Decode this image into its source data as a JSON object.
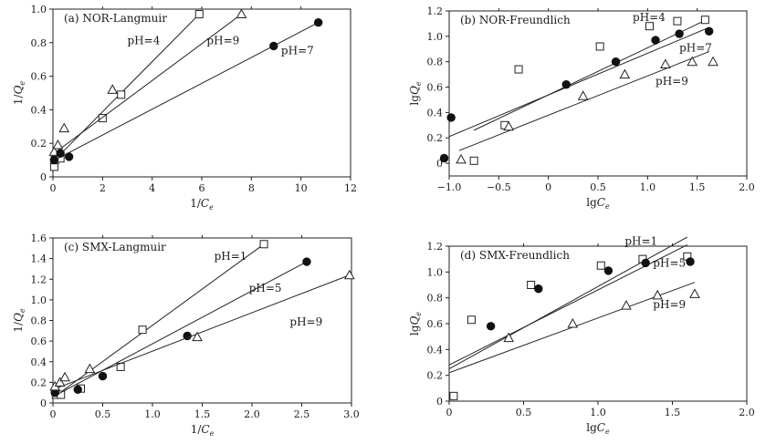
{
  "chart_data": [
    {
      "type": "scatter",
      "title": "(a) NOR-Langmuir",
      "xlabel": "1/Ce",
      "ylabel": "1/Qe",
      "xlim": [
        0,
        12
      ],
      "ylim": [
        0,
        1.0
      ],
      "xticks": [
        "0",
        "2",
        "4",
        "6",
        "8",
        "10",
        "12"
      ],
      "yticks": [
        "0",
        "0.2",
        "0.4",
        "0.6",
        "0.8",
        "1.0"
      ],
      "series": [
        {
          "name": "pH=4",
          "marker": "square",
          "x": [
            0.05,
            0.08,
            0.3,
            2.0,
            2.75,
            5.9
          ],
          "y": [
            0.06,
            0.1,
            0.11,
            0.35,
            0.49,
            0.97
          ],
          "fit": [
            [
              0,
              0.09
            ],
            [
              5.9,
              0.97
            ]
          ]
        },
        {
          "name": "pH=9",
          "marker": "triangle",
          "x": [
            0.05,
            0.2,
            0.45,
            2.4,
            7.6
          ],
          "y": [
            0.15,
            0.19,
            0.29,
            0.52,
            0.97
          ],
          "fit": [
            [
              0,
              0.135
            ],
            [
              7.6,
              0.97
            ]
          ]
        },
        {
          "name": "pH=7",
          "marker": "circle",
          "x": [
            0.05,
            0.3,
            0.65,
            8.9,
            10.7
          ],
          "y": [
            0.1,
            0.14,
            0.12,
            0.78,
            0.92
          ],
          "fit": [
            [
              0,
              0.095
            ],
            [
              10.7,
              0.92
            ]
          ]
        }
      ],
      "labels": [
        {
          "text": "pH=4",
          "x": 3.0,
          "y": 0.79
        },
        {
          "text": "pH=9",
          "x": 6.2,
          "y": 0.79
        },
        {
          "text": "pH=7",
          "x": 9.2,
          "y": 0.73
        }
      ]
    },
    {
      "type": "scatter",
      "title": "(b) NOR-Freundlich",
      "xlabel": "lgCe",
      "ylabel": "lgQe",
      "xlim": [
        -1.0,
        2.0
      ],
      "ylim": [
        -0.1,
        1.2
      ],
      "xticks": [
        "−1.0",
        "−0.5",
        "0",
        "0.5",
        "1.0",
        "1.5",
        "2.0"
      ],
      "yticks": [
        "0",
        "0.2",
        "0.4",
        "0.6",
        "0.8",
        "1.0",
        "1.2"
      ],
      "series": [
        {
          "name": "pH=4",
          "marker": "square",
          "x": [
            -0.75,
            -0.44,
            -0.3,
            0.52,
            1.02,
            1.3,
            1.58
          ],
          "y": [
            0.02,
            0.3,
            0.74,
            0.92,
            1.08,
            1.12,
            1.13
          ],
          "fit": [
            [
              -0.75,
              0.26
            ],
            [
              1.62,
              1.14
            ]
          ]
        },
        {
          "name": "pH=7",
          "marker": "circle",
          "x": [
            -1.05,
            -0.98,
            0.18,
            0.68,
            1.08,
            1.32,
            1.62
          ],
          "y": [
            0.04,
            0.36,
            0.62,
            0.8,
            0.97,
            1.02,
            1.04
          ],
          "fit": [
            [
              -1.0,
              0.21
            ],
            [
              1.62,
              1.07
            ]
          ]
        },
        {
          "name": "pH=9",
          "marker": "triangle",
          "x": [
            -0.88,
            -0.4,
            0.35,
            0.77,
            1.18,
            1.45,
            1.66
          ],
          "y": [
            0.03,
            0.29,
            0.53,
            0.7,
            0.78,
            0.8,
            0.8
          ],
          "fit": [
            [
              -0.9,
              0.1
            ],
            [
              1.62,
              0.88
            ]
          ]
        }
      ],
      "labels": [
        {
          "text": "pH=4",
          "x": 0.85,
          "y": 1.12
        },
        {
          "text": "pH=7",
          "x": 1.32,
          "y": 0.88
        },
        {
          "text": "pH=9",
          "x": 1.08,
          "y": 0.62
        }
      ]
    },
    {
      "type": "scatter",
      "title": "(c) SMX-Langmuir",
      "xlabel": "1/Ce",
      "ylabel": "1/Qe",
      "xlim": [
        0,
        3.0
      ],
      "ylim": [
        0,
        1.6
      ],
      "xticks": [
        "0",
        "0.5",
        "1.0",
        "1.5",
        "2.0",
        "2.5",
        "3.0"
      ],
      "yticks": [
        "0",
        "0.2",
        "0.4",
        "0.6",
        "0.8",
        "1.0",
        "1.2",
        "1.4",
        "1.6"
      ],
      "series": [
        {
          "name": "pH=1",
          "marker": "square",
          "x": [
            0.03,
            0.08,
            0.28,
            0.68,
            0.9,
            2.12
          ],
          "y": [
            0.08,
            0.08,
            0.14,
            0.35,
            0.71,
            1.54
          ],
          "fit": [
            [
              0,
              0.05
            ],
            [
              2.12,
              1.54
            ]
          ]
        },
        {
          "name": "pH=5",
          "marker": "circle",
          "x": [
            0.02,
            0.25,
            0.5,
            1.35,
            2.55
          ],
          "y": [
            0.1,
            0.13,
            0.26,
            0.65,
            1.37
          ],
          "fit": [
            [
              0,
              0.06
            ],
            [
              2.55,
              1.37
            ]
          ]
        },
        {
          "name": "pH=9",
          "marker": "triangle",
          "x": [
            0.02,
            0.07,
            0.12,
            0.37,
            1.45,
            2.98
          ],
          "y": [
            0.16,
            0.2,
            0.25,
            0.33,
            0.64,
            1.24
          ],
          "fit": [
            [
              0,
              0.13
            ],
            [
              2.98,
              1.24
            ]
          ]
        }
      ],
      "labels": [
        {
          "text": "pH=1",
          "x": 1.62,
          "y": 1.39
        },
        {
          "text": "pH=5",
          "x": 1.97,
          "y": 1.08
        },
        {
          "text": "pH=9",
          "x": 2.38,
          "y": 0.75
        }
      ]
    },
    {
      "type": "scatter",
      "title": "(d) SMX-Freundlich",
      "xlabel": "lgCe",
      "ylabel": "lgQe",
      "xlim": [
        0,
        2.0
      ],
      "ylim": [
        0,
        1.2
      ],
      "xticks": [
        "0",
        "0.5",
        "1.0",
        "1.5",
        "2.0"
      ],
      "yticks": [
        "0",
        "0.2",
        "0.4",
        "0.6",
        "0.8",
        "1.0",
        "1.2"
      ],
      "series": [
        {
          "name": "pH=1",
          "marker": "square",
          "x": [
            0.03,
            0.15,
            0.55,
            1.02,
            1.3,
            1.6
          ],
          "y": [
            0.04,
            0.63,
            0.9,
            1.05,
            1.1,
            1.12
          ],
          "fit": [
            [
              0,
              0.25
            ],
            [
              1.6,
              1.27
            ]
          ]
        },
        {
          "name": "pH=5",
          "marker": "circle",
          "x": [
            0.28,
            0.6,
            1.07,
            1.32,
            1.62
          ],
          "y": [
            0.58,
            0.87,
            1.01,
            1.07,
            1.08
          ],
          "fit": [
            [
              0,
              0.28
            ],
            [
              1.6,
              1.21
            ]
          ]
        },
        {
          "name": "pH=9",
          "marker": "triangle",
          "x": [
            0.4,
            0.83,
            1.19,
            1.4,
            1.65
          ],
          "y": [
            0.49,
            0.6,
            0.74,
            0.82,
            0.83
          ],
          "fit": [
            [
              0,
              0.22
            ],
            [
              1.65,
              0.92
            ]
          ]
        }
      ],
      "labels": [
        {
          "text": "pH=1",
          "x": 1.18,
          "y": 1.21
        },
        {
          "text": "pH=5",
          "x": 1.37,
          "y": 1.04
        },
        {
          "text": "pH=9",
          "x": 1.37,
          "y": 0.72
        }
      ]
    }
  ]
}
